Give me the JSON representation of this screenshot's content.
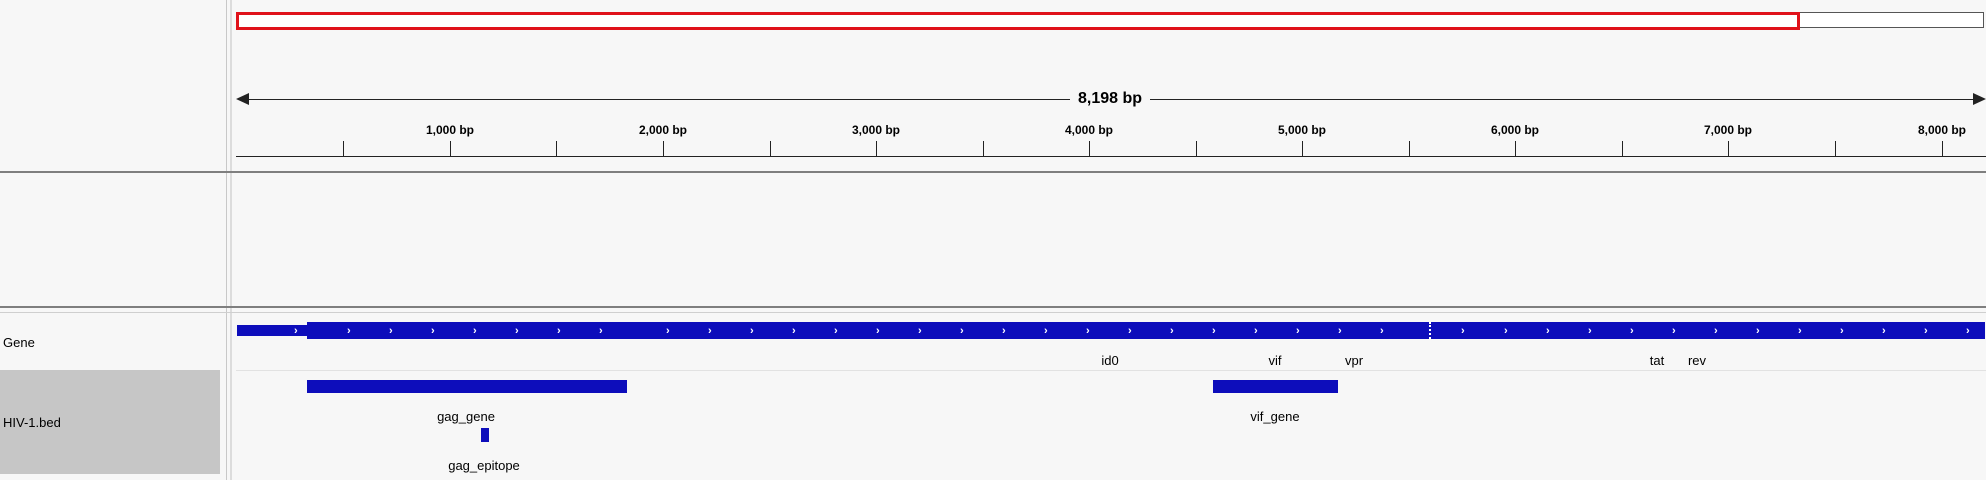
{
  "ruler": {
    "span_label": "8,198 bp",
    "ticks": [
      "1,000 bp",
      "2,000 bp",
      "3,000 bp",
      "4,000 bp",
      "5,000 bp",
      "6,000 bp",
      "7,000 bp",
      "8,000 bp"
    ]
  },
  "tracks": {
    "gene": {
      "name": "Gene",
      "features": [
        "id0",
        "vif",
        "vpr",
        "tat",
        "rev"
      ]
    },
    "bed": {
      "name": "HIV-1.bed",
      "features": [
        "gag_gene",
        "vif_gene",
        "gag_epitope"
      ]
    }
  },
  "colors": {
    "feature": "#0d0dbb",
    "region_box": "#e0121a",
    "bed_name_bg": "#c6c6c6"
  },
  "icons": [
    "strand-arrow-icon"
  ]
}
